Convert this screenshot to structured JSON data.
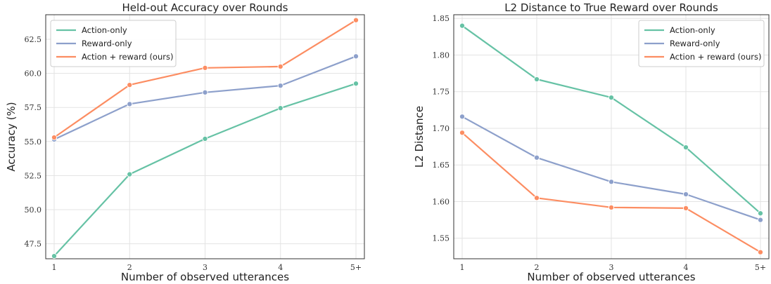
{
  "chart_data": [
    {
      "type": "line",
      "title": "Held-out Accuracy over Rounds",
      "xlabel": "Number of observed utterances",
      "ylabel": "Accuracy (%)",
      "categories": [
        "1",
        "2",
        "3",
        "4",
        "5+"
      ],
      "ylim": [
        46.4,
        64.3
      ],
      "yticks": [
        "47.5",
        "50.0",
        "52.5",
        "55.0",
        "57.5",
        "60.0",
        "62.5"
      ],
      "grid": true,
      "legend_position": "top-left",
      "series": [
        {
          "name": "Action-only",
          "color": "#66c2a5",
          "values": [
            46.6,
            52.6,
            55.2,
            57.45,
            59.25
          ]
        },
        {
          "name": "Reward-only",
          "color": "#8da0cb",
          "values": [
            55.15,
            57.75,
            58.6,
            59.1,
            61.25
          ]
        },
        {
          "name": "Action + reward (ours)",
          "color": "#fc8d62",
          "values": [
            55.3,
            59.15,
            60.4,
            60.5,
            63.9
          ]
        }
      ]
    },
    {
      "type": "line",
      "title": "L2 Distance to True Reward over Rounds",
      "xlabel": "Number of observed utterances",
      "ylabel": "L2 Distance",
      "categories": [
        "1",
        "2",
        "3",
        "4",
        "5+"
      ],
      "ylim": [
        1.522,
        1.855
      ],
      "yticks": [
        "1.55",
        "1.60",
        "1.65",
        "1.70",
        "1.75",
        "1.80",
        "1.85"
      ],
      "grid": true,
      "legend_position": "top-right",
      "series": [
        {
          "name": "Action-only",
          "color": "#66c2a5",
          "values": [
            1.84,
            1.767,
            1.742,
            1.674,
            1.584
          ]
        },
        {
          "name": "Reward-only",
          "color": "#8da0cb",
          "values": [
            1.716,
            1.66,
            1.627,
            1.61,
            1.575
          ]
        },
        {
          "name": "Action + reward (ours)",
          "color": "#fc8d62",
          "values": [
            1.694,
            1.605,
            1.592,
            1.591,
            1.531
          ]
        }
      ]
    }
  ]
}
